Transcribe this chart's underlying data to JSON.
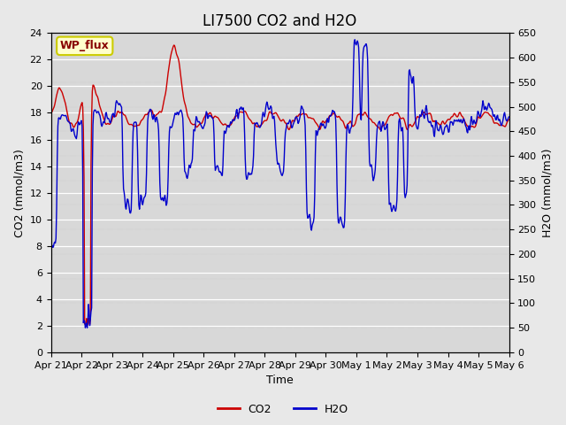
{
  "title": "LI7500 CO2 and H2O",
  "xlabel": "Time",
  "ylabel_left": "CO2 (mmol/m3)",
  "ylabel_right": "H2O (mmol/m3)",
  "co2_ylim": [
    0,
    24
  ],
  "h2o_ylim": [
    0,
    650
  ],
  "co2_yticks": [
    0,
    2,
    4,
    6,
    8,
    10,
    12,
    14,
    16,
    18,
    20,
    22,
    24
  ],
  "h2o_yticks": [
    0,
    50,
    100,
    150,
    200,
    250,
    300,
    350,
    400,
    450,
    500,
    550,
    600,
    650
  ],
  "xtick_labels": [
    "Apr 21",
    "Apr 22",
    "Apr 23",
    "Apr 24",
    "Apr 25",
    "Apr 26",
    "Apr 27",
    "Apr 28",
    "Apr 29",
    "Apr 30",
    "May 1",
    "May 2",
    "May 3",
    "May 4",
    "May 5",
    "May 6"
  ],
  "co2_color": "#cc0000",
  "h2o_color": "#0000cc",
  "bg_color": "#e8e8e8",
  "plot_bg_color": "#d8d8d8",
  "annotation_text": "WP_flux",
  "annotation_bg": "#ffffcc",
  "annotation_border": "#cccc00",
  "legend_co2": "CO2",
  "legend_h2o": "H2O",
  "title_fontsize": 12,
  "label_fontsize": 9,
  "tick_fontsize": 8
}
